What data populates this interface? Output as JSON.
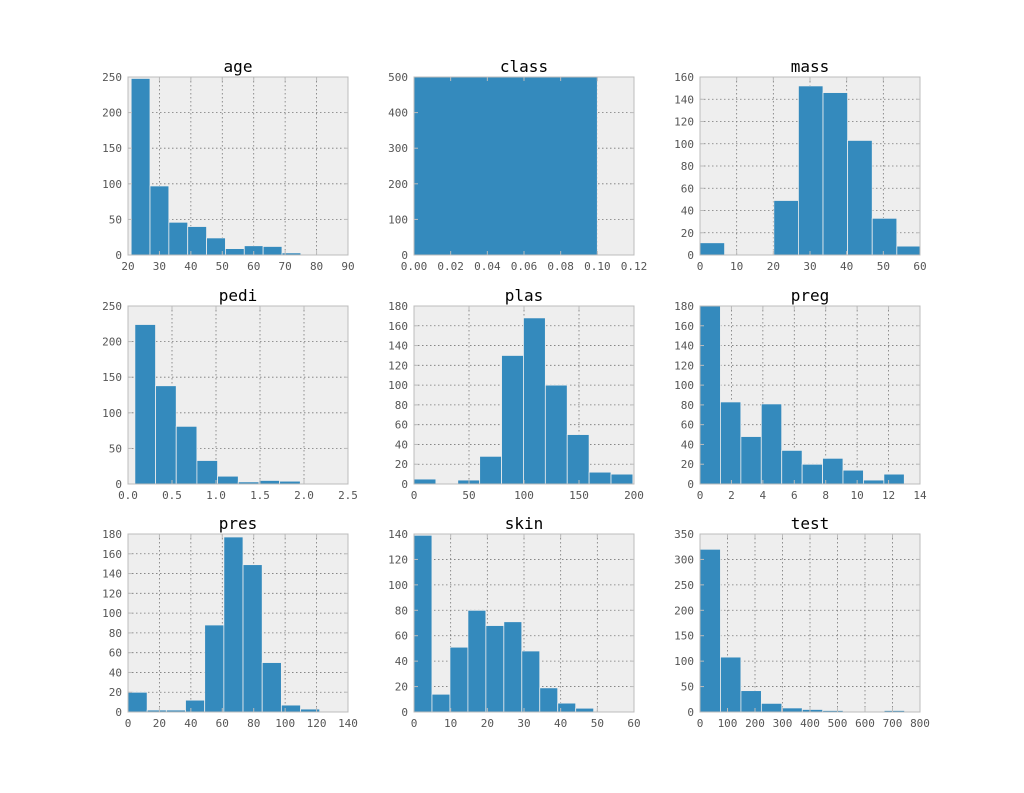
{
  "colors": {
    "bar": "#348abd",
    "bar_edge": "#eeeeee",
    "plot_background": "#eeeeee",
    "grid": "#777777",
    "frame": "#bcbcbc",
    "text": "#555555"
  },
  "chart_data": [
    {
      "type": "bar",
      "title": "age",
      "xlabel": "",
      "ylabel": "",
      "grid": true,
      "xlim": [
        20,
        90
      ],
      "ylim": [
        0,
        250
      ],
      "xticks": [
        20,
        30,
        40,
        50,
        60,
        70,
        80,
        90
      ],
      "yticks": [
        0,
        50,
        100,
        150,
        200,
        250
      ],
      "xtick_labels": [
        "20",
        "30",
        "40",
        "50",
        "60",
        "70",
        "80",
        "90"
      ],
      "ytick_labels": [
        "0",
        "50",
        "100",
        "150",
        "200",
        "250"
      ],
      "bin_edges": [
        21,
        27,
        33,
        39,
        45,
        51,
        57,
        63,
        69,
        75,
        81
      ],
      "counts": [
        248,
        97,
        46,
        40,
        24,
        9,
        13,
        12,
        3,
        0
      ]
    },
    {
      "type": "bar",
      "title": "class",
      "xlabel": "",
      "ylabel": "",
      "grid": true,
      "xlim": [
        0,
        0.12
      ],
      "ylim": [
        0,
        500
      ],
      "xticks": [
        0,
        0.02,
        0.04,
        0.06,
        0.08,
        0.1,
        0.12
      ],
      "yticks": [
        0,
        100,
        200,
        300,
        400,
        500
      ],
      "xtick_labels": [
        "0.00",
        "0.02",
        "0.04",
        "0.06",
        "0.08",
        "0.10",
        "0.12"
      ],
      "ytick_labels": [
        "0",
        "100",
        "200",
        "300",
        "400",
        "500"
      ],
      "bin_edges": [
        0,
        0.1
      ],
      "counts": [
        500
      ]
    },
    {
      "type": "bar",
      "title": "mass",
      "xlabel": "",
      "ylabel": "",
      "grid": true,
      "xlim": [
        0,
        60
      ],
      "ylim": [
        0,
        160
      ],
      "xticks": [
        0,
        10,
        20,
        30,
        40,
        50,
        60
      ],
      "yticks": [
        0,
        20,
        40,
        60,
        80,
        100,
        120,
        140,
        160
      ],
      "xtick_labels": [
        "0",
        "10",
        "20",
        "30",
        "40",
        "50",
        "60"
      ],
      "ytick_labels": [
        "0",
        "20",
        "40",
        "60",
        "80",
        "100",
        "120",
        "140",
        "160"
      ],
      "bin_edges": [
        0,
        6.71,
        13.42,
        20.13,
        26.84,
        33.55,
        40.26,
        46.97,
        53.68,
        60.39,
        67.1
      ],
      "counts": [
        11,
        0,
        0,
        49,
        152,
        146,
        103,
        33,
        8,
        2
      ]
    },
    {
      "type": "bar",
      "title": "pedi",
      "xlabel": "",
      "ylabel": "",
      "grid": true,
      "xlim": [
        0,
        2.5
      ],
      "ylim": [
        0,
        250
      ],
      "xticks": [
        0,
        0.5,
        1,
        1.5,
        2,
        2.5
      ],
      "yticks": [
        0,
        50,
        100,
        150,
        200,
        250
      ],
      "xtick_labels": [
        "0.0",
        "0.5",
        "1.0",
        "1.5",
        "2.0",
        "2.5"
      ],
      "ytick_labels": [
        "0",
        "50",
        "100",
        "150",
        "200",
        "250"
      ],
      "bin_edges": [
        0.078,
        0.313,
        0.548,
        0.783,
        1.018,
        1.253,
        1.488,
        1.723,
        1.958,
        2.193,
        2.428
      ],
      "counts": [
        224,
        138,
        81,
        33,
        11,
        3,
        5,
        4,
        1,
        1
      ]
    },
    {
      "type": "bar",
      "title": "plas",
      "xlabel": "",
      "ylabel": "",
      "grid": true,
      "xlim": [
        0,
        200
      ],
      "ylim": [
        0,
        180
      ],
      "xticks": [
        0,
        50,
        100,
        150,
        200
      ],
      "yticks": [
        0,
        20,
        40,
        60,
        80,
        100,
        120,
        140,
        160,
        180
      ],
      "xtick_labels": [
        "0",
        "50",
        "100",
        "150",
        "200"
      ],
      "ytick_labels": [
        "0",
        "20",
        "40",
        "60",
        "80",
        "100",
        "120",
        "140",
        "160",
        "180"
      ],
      "bin_edges": [
        0,
        19.9,
        39.8,
        59.7,
        79.6,
        99.5,
        119.4,
        139.3,
        159.2,
        179.1,
        199
      ],
      "counts": [
        5,
        0,
        4,
        28,
        130,
        168,
        100,
        50,
        12,
        10
      ]
    },
    {
      "type": "bar",
      "title": "preg",
      "xlabel": "",
      "ylabel": "",
      "grid": true,
      "xlim": [
        0,
        14
      ],
      "ylim": [
        0,
        180
      ],
      "xticks": [
        0,
        2,
        4,
        6,
        8,
        10,
        12,
        14
      ],
      "yticks": [
        0,
        20,
        40,
        60,
        80,
        100,
        120,
        140,
        160,
        180
      ],
      "xtick_labels": [
        "0",
        "2",
        "4",
        "6",
        "8",
        "10",
        "12",
        "14"
      ],
      "ytick_labels": [
        "0",
        "20",
        "40",
        "60",
        "80",
        "100",
        "120",
        "140",
        "160",
        "180"
      ],
      "bin_edges": [
        0,
        1.3,
        2.6,
        3.9,
        5.2,
        6.5,
        7.8,
        9.1,
        10.4,
        11.7,
        13
      ],
      "counts": [
        180,
        83,
        48,
        81,
        34,
        20,
        26,
        14,
        4,
        10
      ]
    },
    {
      "type": "bar",
      "title": "pres",
      "xlabel": "",
      "ylabel": "",
      "grid": true,
      "xlim": [
        0,
        140
      ],
      "ylim": [
        0,
        180
      ],
      "xticks": [
        0,
        20,
        40,
        60,
        80,
        100,
        120,
        140
      ],
      "yticks": [
        0,
        20,
        40,
        60,
        80,
        100,
        120,
        140,
        160,
        180
      ],
      "xtick_labels": [
        "0",
        "20",
        "40",
        "60",
        "80",
        "100",
        "120",
        "140"
      ],
      "ytick_labels": [
        "0",
        "20",
        "40",
        "60",
        "80",
        "100",
        "120",
        "140",
        "160",
        "180"
      ],
      "bin_edges": [
        0,
        12.2,
        24.4,
        36.6,
        48.8,
        61,
        73.2,
        85.4,
        97.6,
        109.8,
        122
      ],
      "counts": [
        20,
        2,
        2,
        12,
        88,
        177,
        149,
        50,
        7,
        3
      ]
    },
    {
      "type": "bar",
      "title": "skin",
      "xlabel": "",
      "ylabel": "",
      "grid": true,
      "xlim": [
        0,
        60
      ],
      "ylim": [
        0,
        140
      ],
      "xticks": [
        0,
        10,
        20,
        30,
        40,
        50,
        60
      ],
      "yticks": [
        0,
        20,
        40,
        60,
        80,
        100,
        120,
        140
      ],
      "xtick_labels": [
        "0",
        "10",
        "20",
        "30",
        "40",
        "50",
        "60"
      ],
      "ytick_labels": [
        "0",
        "20",
        "40",
        "60",
        "80",
        "100",
        "120",
        "140"
      ],
      "bin_edges": [
        0,
        4.9,
        9.8,
        14.7,
        19.6,
        24.5,
        29.4,
        34.3,
        39.2,
        44.1,
        49,
        53.9,
        58.8
      ],
      "counts": [
        139,
        14,
        51,
        80,
        68,
        71,
        48,
        19,
        7,
        3,
        0,
        0
      ]
    },
    {
      "type": "bar",
      "title": "test",
      "xlabel": "",
      "ylabel": "",
      "grid": true,
      "xlim": [
        0,
        800
      ],
      "ylim": [
        0,
        350
      ],
      "xticks": [
        0,
        100,
        200,
        300,
        400,
        500,
        600,
        700,
        800
      ],
      "yticks": [
        0,
        50,
        100,
        150,
        200,
        250,
        300,
        350
      ],
      "xtick_labels": [
        "0",
        "100",
        "200",
        "300",
        "400",
        "500",
        "600",
        "700",
        "800"
      ],
      "ytick_labels": [
        "0",
        "50",
        "100",
        "150",
        "200",
        "250",
        "300",
        "350"
      ],
      "bin_edges": [
        0,
        74.4,
        148.8,
        223.2,
        297.6,
        372,
        446.4,
        520.8,
        595.2,
        669.6,
        744
      ],
      "counts": [
        320,
        108,
        42,
        17,
        8,
        5,
        3,
        1,
        1,
        3
      ]
    }
  ]
}
